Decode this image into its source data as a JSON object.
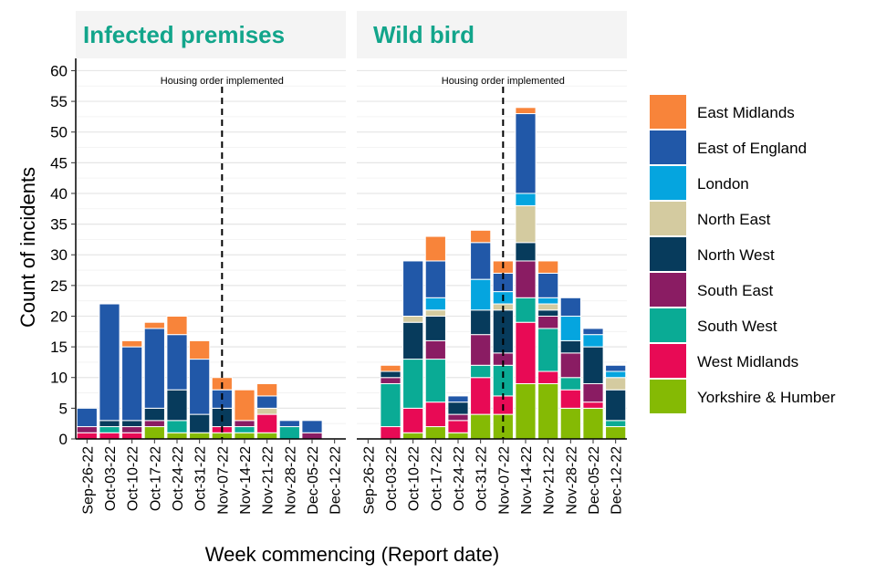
{
  "chart_data": {
    "type": "bar",
    "stacked": true,
    "ylabel": "Count of incidents",
    "xlabel": "Week commencing (Report date)",
    "ylim": [
      0,
      62
    ],
    "yticks": [
      0,
      5,
      10,
      15,
      20,
      25,
      30,
      35,
      40,
      45,
      50,
      55,
      60
    ],
    "categories": [
      "Sep-26-22",
      "Oct-03-22",
      "Oct-10-22",
      "Oct-17-22",
      "Oct-24-22",
      "Oct-31-22",
      "Nov-07-22",
      "Nov-14-22",
      "Nov-21-22",
      "Nov-28-22",
      "Dec-05-22",
      "Dec-12-22"
    ],
    "annotation": {
      "text": "Housing order implemented",
      "category": "Nov-07-22"
    },
    "legend": [
      {
        "name": "East Midlands",
        "color": "#F8843A"
      },
      {
        "name": "East of England",
        "color": "#2158A8"
      },
      {
        "name": "London",
        "color": "#05A5DF"
      },
      {
        "name": "North East",
        "color": "#D4CBA0"
      },
      {
        "name": "North West",
        "color": "#073B5C"
      },
      {
        "name": "South East",
        "color": "#8A1C63"
      },
      {
        "name": "South West",
        "color": "#0AAB95"
      },
      {
        "name": "West Midlands",
        "color": "#E80A55"
      },
      {
        "name": "Yorkshire & Humber",
        "color": "#85BA04"
      }
    ],
    "stack_order": [
      "Yorkshire & Humber",
      "West Midlands",
      "South West",
      "South East",
      "North West",
      "North East",
      "London",
      "East of England",
      "East Midlands"
    ],
    "panels": [
      {
        "title": "Infected premises",
        "series": [
          {
            "name": "Yorkshire & Humber",
            "values": [
              0,
              0,
              0,
              2,
              1,
              1,
              1,
              1,
              1,
              0,
              0,
              0
            ]
          },
          {
            "name": "West Midlands",
            "values": [
              1,
              1,
              1,
              0,
              0,
              0,
              1,
              0,
              3,
              0,
              0,
              0
            ]
          },
          {
            "name": "South West",
            "values": [
              0,
              1,
              0,
              0,
              2,
              0,
              0,
              1,
              0,
              2,
              0,
              0
            ]
          },
          {
            "name": "South East",
            "values": [
              1,
              0,
              1,
              1,
              0,
              0,
              0,
              1,
              0,
              0,
              1,
              0
            ]
          },
          {
            "name": "North West",
            "values": [
              0,
              1,
              1,
              2,
              5,
              3,
              3,
              0,
              0,
              0,
              0,
              0
            ]
          },
          {
            "name": "North East",
            "values": [
              0,
              0,
              0,
              0,
              0,
              0,
              0,
              0,
              1,
              0,
              0,
              0
            ]
          },
          {
            "name": "London",
            "values": [
              0,
              0,
              0,
              0,
              0,
              0,
              0,
              0,
              0,
              0,
              0,
              0
            ]
          },
          {
            "name": "East of England",
            "values": [
              3,
              19,
              12,
              13,
              9,
              9,
              3,
              0,
              2,
              1,
              2,
              0
            ]
          },
          {
            "name": "East Midlands",
            "values": [
              0,
              0,
              1,
              1,
              3,
              3,
              2,
              5,
              2,
              0,
              0,
              0
            ]
          }
        ]
      },
      {
        "title": "Wild bird",
        "series": [
          {
            "name": "Yorkshire & Humber",
            "values": [
              0,
              0,
              1,
              2,
              1,
              4,
              4,
              9,
              9,
              5,
              5,
              2
            ]
          },
          {
            "name": "West Midlands",
            "values": [
              0,
              2,
              4,
              4,
              2,
              6,
              3,
              10,
              2,
              3,
              1,
              0
            ]
          },
          {
            "name": "South West",
            "values": [
              0,
              7,
              8,
              7,
              0,
              2,
              5,
              4,
              7,
              2,
              0,
              1
            ]
          },
          {
            "name": "South East",
            "values": [
              0,
              1,
              0,
              3,
              1,
              5,
              2,
              6,
              2,
              4,
              3,
              0
            ]
          },
          {
            "name": "North West",
            "values": [
              0,
              1,
              6,
              4,
              2,
              4,
              7,
              3,
              1,
              2,
              6,
              5
            ]
          },
          {
            "name": "North East",
            "values": [
              0,
              0,
              1,
              1,
              0,
              0,
              1,
              6,
              1,
              0,
              0,
              2
            ]
          },
          {
            "name": "London",
            "values": [
              0,
              0,
              0,
              2,
              0,
              5,
              2,
              2,
              1,
              4,
              2,
              1
            ]
          },
          {
            "name": "East of England",
            "values": [
              0,
              0,
              9,
              6,
              1,
              6,
              3,
              13,
              4,
              3,
              1,
              1
            ]
          },
          {
            "name": "East Midlands",
            "values": [
              0,
              1,
              0,
              4,
              0,
              2,
              2,
              1,
              2,
              0,
              0,
              0
            ]
          }
        ]
      }
    ]
  }
}
